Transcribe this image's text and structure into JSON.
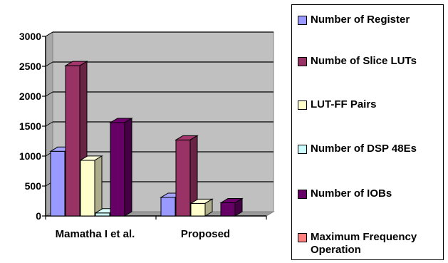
{
  "chart_data": {
    "type": "bar",
    "title": "",
    "xlabel": "",
    "ylabel": "",
    "ylim": [
      0,
      3000
    ],
    "yticks": [
      0,
      500,
      1000,
      1500,
      2000,
      2500,
      3000
    ],
    "grid": true,
    "legend_position": "right",
    "categories": [
      "Mamatha I et al.",
      "Proposed"
    ],
    "series": [
      {
        "name": "Number of Register",
        "color": "#9999ff",
        "values": [
          1080,
          310
        ]
      },
      {
        "name": "Numbe of Slice LUTs",
        "color": "#993366",
        "values": [
          2510,
          1270
        ]
      },
      {
        "name": "LUT-FF Pairs",
        "color": "#ffffcc",
        "values": [
          930,
          210
        ]
      },
      {
        "name": "Number of DSP 48Es",
        "color": "#ccffff",
        "values": [
          50,
          0
        ]
      },
      {
        "name": "Number of IOBs",
        "color": "#660066",
        "values": [
          1560,
          220
        ]
      },
      {
        "name": "Maximum Frequency Operation",
        "color": "#ff8080",
        "values": [
          0,
          0
        ]
      }
    ]
  }
}
